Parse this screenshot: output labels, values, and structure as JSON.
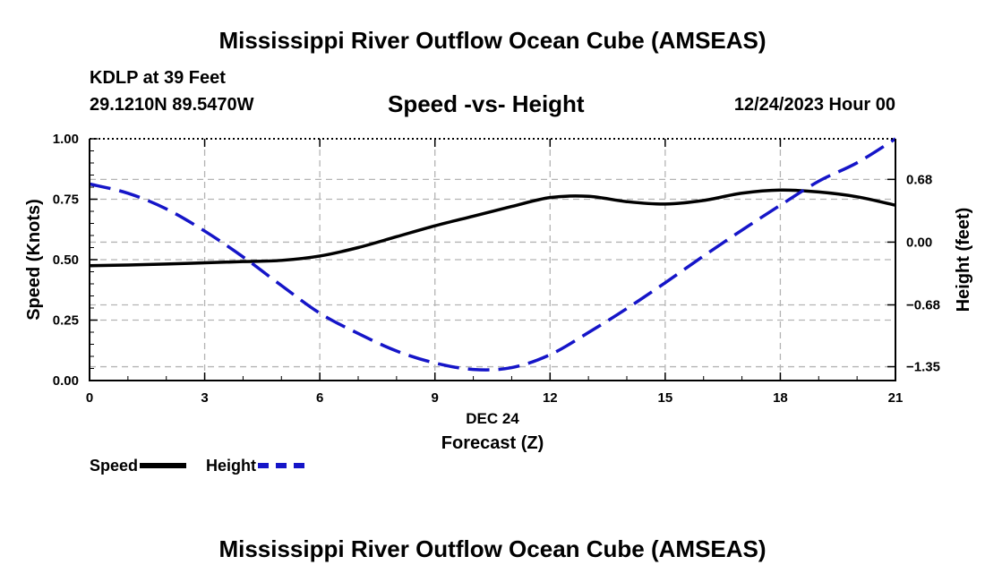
{
  "header": {
    "title": "Mississippi River Outflow Ocean Cube (AMSEAS)",
    "station": "KDLP at 39 Feet",
    "coordinates": "29.1210N  89.5470W",
    "subtitle": "Speed -vs- Height",
    "datetime": "12/24/2023 Hour 00"
  },
  "footer": {
    "title": "Mississippi River Outflow Ocean Cube (AMSEAS)"
  },
  "legend": {
    "speed_label": "Speed",
    "height_label": "Height"
  },
  "colors": {
    "speed": "#000000",
    "height": "#1515c8",
    "grid": "#b4b4b4"
  },
  "chart_data": {
    "type": "line",
    "title": "Speed -vs- Height",
    "xlabel": "Forecast (Z)",
    "xlabel_date": "DEC 24",
    "ylabel": "Speed (Knots)",
    "y2label": "Height (feet)",
    "xlim": [
      0,
      21
    ],
    "ylim": [
      0,
      1
    ],
    "y2lim": [
      -1.5,
      1.12
    ],
    "xticks": [
      0,
      3,
      6,
      9,
      12,
      15,
      18,
      21
    ],
    "xtick_labels": [
      "0",
      "3",
      "6",
      "9",
      "12",
      "15",
      "18",
      "21"
    ],
    "yticks": [
      0,
      0.25,
      0.5,
      0.75,
      1.0
    ],
    "ytick_labels": [
      "0.00",
      "0.25",
      "0.50",
      "0.75",
      "1.00"
    ],
    "y2ticks": [
      -1.35,
      -0.68,
      0.0,
      0.68
    ],
    "y2tick_labels": [
      "-1.35",
      "-0.68",
      "0.00",
      "0.68"
    ],
    "grid": true,
    "legend_position": "bottom-left",
    "x": [
      0,
      1,
      2,
      3,
      4,
      5,
      6,
      7,
      8,
      9,
      10,
      11,
      12,
      13,
      14,
      15,
      16,
      17,
      18,
      19,
      20,
      21
    ],
    "series": [
      {
        "name": "Speed",
        "axis": "left",
        "style": "solid",
        "values": [
          0.475,
          0.478,
          0.482,
          0.487,
          0.492,
          0.497,
          0.515,
          0.55,
          0.595,
          0.64,
          0.68,
          0.72,
          0.757,
          0.762,
          0.74,
          0.73,
          0.745,
          0.775,
          0.788,
          0.78,
          0.76,
          0.725
        ]
      },
      {
        "name": "Height",
        "axis": "right",
        "style": "dashed",
        "values": [
          0.63,
          0.53,
          0.36,
          0.12,
          -0.16,
          -0.47,
          -0.77,
          -0.99,
          -1.18,
          -1.31,
          -1.38,
          -1.36,
          -1.22,
          -0.98,
          -0.72,
          -0.44,
          -0.15,
          0.13,
          0.4,
          0.66,
          0.86,
          1.12
        ]
      }
    ]
  }
}
